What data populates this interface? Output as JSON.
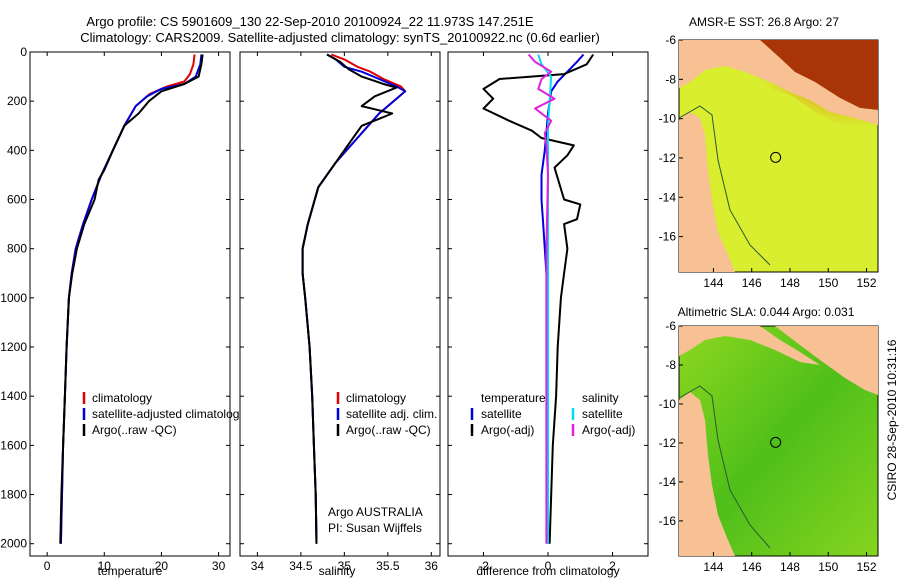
{
  "header": {
    "line1": "Argo profile: CS 5901609_130 22-Sep-2010 20100924_22 11.973S 147.251E",
    "line2": "Climatology: CARS2009. Satellite-adjusted climatology: synTS_20100922.nc (0.6d earlier)"
  },
  "side_stamp": "CSIRO 28-Sep-2010 10:31:16",
  "chart_data": [
    {
      "id": "temperature",
      "type": "line",
      "xlabel": "temperature",
      "ylabel": "",
      "xlim": [
        -3,
        32
      ],
      "ylim": [
        2050,
        0
      ],
      "xticks": [
        0,
        10,
        20,
        30
      ],
      "yticks": [
        0,
        200,
        400,
        600,
        800,
        1000,
        1200,
        1400,
        1600,
        1800,
        2000
      ],
      "legend": {
        "position": "lower-right",
        "entries": [
          {
            "label": "climatology",
            "color": "#e00000"
          },
          {
            "label": "satellite-adjusted climatology",
            "color": "#0000dd"
          },
          {
            "label": "Argo(..raw -QC)",
            "color": "#000000"
          }
        ]
      },
      "series": [
        {
          "key": "climatology",
          "color": "#e00000",
          "points": [
            [
              25.8,
              10
            ],
            [
              25.6,
              50
            ],
            [
              25,
              90
            ],
            [
              24,
              120
            ],
            [
              21,
              140
            ],
            [
              18,
              170
            ],
            [
              15.5,
              220
            ],
            [
              13.5,
              300
            ],
            [
              11.5,
              400
            ],
            [
              9.5,
              500
            ],
            [
              7.8,
              600
            ],
            [
              6.3,
              700
            ],
            [
              5,
              800
            ],
            [
              4.3,
              900
            ],
            [
              3.8,
              1000
            ],
            [
              3.4,
              1200
            ],
            [
              3.1,
              1400
            ],
            [
              2.8,
              1600
            ],
            [
              2.6,
              1800
            ],
            [
              2.4,
              2000
            ]
          ]
        },
        {
          "key": "satellite",
          "color": "#0000dd",
          "points": [
            [
              27,
              10
            ],
            [
              26.8,
              50
            ],
            [
              26,
              100
            ],
            [
              24,
              130
            ],
            [
              20,
              150
            ],
            [
              17.5,
              180
            ],
            [
              15.5,
              220
            ],
            [
              13.5,
              300
            ],
            [
              11.5,
              400
            ],
            [
              9.5,
              500
            ],
            [
              7.8,
              600
            ],
            [
              6.3,
              700
            ],
            [
              5,
              800
            ],
            [
              4.3,
              900
            ],
            [
              3.8,
              1000
            ],
            [
              3.4,
              1200
            ],
            [
              3.1,
              1400
            ],
            [
              2.8,
              1600
            ],
            [
              2.6,
              1800
            ],
            [
              2.4,
              2000
            ]
          ]
        },
        {
          "key": "argo",
          "color": "#000000",
          "points": [
            [
              27.2,
              10
            ],
            [
              27,
              50
            ],
            [
              26.5,
              100
            ],
            [
              24,
              130
            ],
            [
              20,
              160
            ],
            [
              17.8,
              200
            ],
            [
              16,
              250
            ],
            [
              13.5,
              300
            ],
            [
              12.5,
              350
            ],
            [
              11.5,
              400
            ],
            [
              10,
              480
            ],
            [
              9,
              520
            ],
            [
              8.3,
              600
            ],
            [
              6.5,
              700
            ],
            [
              5.2,
              800
            ],
            [
              4.4,
              900
            ],
            [
              3.8,
              1000
            ],
            [
              3.4,
              1200
            ],
            [
              3.1,
              1400
            ],
            [
              2.8,
              1600
            ],
            [
              2.5,
              1800
            ],
            [
              2.3,
              2000
            ]
          ]
        }
      ]
    },
    {
      "id": "salinity",
      "type": "line",
      "xlabel": "salinity",
      "ylabel": "",
      "xlim": [
        33.8,
        36.1
      ],
      "ylim": [
        2050,
        0
      ],
      "xticks": [
        34,
        34.5,
        35,
        35.5,
        36
      ],
      "yticks": [
        0,
        200,
        400,
        600,
        800,
        1000,
        1200,
        1400,
        1600,
        1800,
        2000
      ],
      "legend": {
        "position": "lower-right",
        "entries": [
          {
            "label": "climatology",
            "color": "#e00000"
          },
          {
            "label": "satellite adj. clim.",
            "color": "#0000dd"
          },
          {
            "label": "Argo(..raw -QC)",
            "color": "#000000"
          }
        ]
      },
      "annotations": [
        "Argo AUSTRALIA",
        "PI: Susan Wijffels"
      ],
      "series": [
        {
          "key": "climatology",
          "color": "#e00000",
          "points": [
            [
              34.85,
              10
            ],
            [
              35.0,
              30
            ],
            [
              35.15,
              60
            ],
            [
              35.3,
              80
            ],
            [
              35.45,
              110
            ],
            [
              35.65,
              140
            ],
            [
              35.7,
              160
            ],
            [
              35.6,
              190
            ],
            [
              35.4,
              250
            ],
            [
              35.15,
              350
            ],
            [
              34.9,
              450
            ],
            [
              34.7,
              550
            ],
            [
              34.58,
              700
            ],
            [
              34.52,
              800
            ],
            [
              34.52,
              900
            ],
            [
              34.55,
              1000
            ],
            [
              34.6,
              1200
            ],
            [
              34.63,
              1400
            ],
            [
              34.65,
              1600
            ],
            [
              34.67,
              1800
            ],
            [
              34.68,
              2000
            ]
          ]
        },
        {
          "key": "satellite",
          "color": "#0000dd",
          "points": [
            [
              34.8,
              10
            ],
            [
              34.9,
              30
            ],
            [
              35.0,
              60
            ],
            [
              35.2,
              80
            ],
            [
              35.4,
              110
            ],
            [
              35.6,
              140
            ],
            [
              35.7,
              160
            ],
            [
              35.6,
              190
            ],
            [
              35.4,
              250
            ],
            [
              35.15,
              350
            ],
            [
              34.9,
              450
            ],
            [
              34.7,
              550
            ],
            [
              34.58,
              700
            ],
            [
              34.52,
              800
            ],
            [
              34.52,
              900
            ],
            [
              34.55,
              1000
            ],
            [
              34.6,
              1200
            ],
            [
              34.63,
              1400
            ],
            [
              34.65,
              1600
            ],
            [
              34.67,
              1800
            ],
            [
              34.68,
              2000
            ]
          ]
        },
        {
          "key": "argo",
          "color": "#000000",
          "points": [
            [
              34.8,
              10
            ],
            [
              34.95,
              40
            ],
            [
              35.05,
              70
            ],
            [
              35.2,
              100
            ],
            [
              35.45,
              130
            ],
            [
              35.6,
              145
            ],
            [
              35.35,
              180
            ],
            [
              35.2,
              220
            ],
            [
              35.55,
              250
            ],
            [
              35.2,
              300
            ],
            [
              35.1,
              350
            ],
            [
              34.9,
              450
            ],
            [
              34.7,
              550
            ],
            [
              34.58,
              700
            ],
            [
              34.52,
              800
            ],
            [
              34.52,
              900
            ],
            [
              34.55,
              1000
            ],
            [
              34.6,
              1200
            ],
            [
              34.63,
              1400
            ],
            [
              34.65,
              1600
            ],
            [
              34.67,
              1800
            ],
            [
              34.68,
              2000
            ]
          ]
        }
      ]
    },
    {
      "id": "difference",
      "type": "line",
      "xlabel": "difference from climatology",
      "ylabel": "",
      "xlim": [
        -3.1,
        3.1
      ],
      "ylim": [
        2050,
        0
      ],
      "xticks": [
        -2,
        0,
        2
      ],
      "yticks": [
        0,
        200,
        400,
        600,
        800,
        1000,
        1200,
        1400,
        1600,
        1800,
        2000
      ],
      "legend": {
        "position": "lower-middle",
        "groups": [
          {
            "title": "temperature",
            "entries": [
              {
                "label": "satellite",
                "color": "#0000dd"
              },
              {
                "label": "Argo(-adj)",
                "color": "#000000"
              }
            ]
          },
          {
            "title": "salinity",
            "entries": [
              {
                "label": "satellite",
                "color": "#00ddee"
              },
              {
                "label": "Argo(-adj)",
                "color": "#e020e0"
              }
            ]
          }
        ]
      },
      "series": [
        {
          "key": "temp_satellite",
          "color": "#0000dd",
          "points": [
            [
              1.1,
              10
            ],
            [
              0.9,
              40
            ],
            [
              0.6,
              80
            ],
            [
              0.3,
              120
            ],
            [
              0.1,
              160
            ],
            [
              0.0,
              250
            ],
            [
              -0.1,
              400
            ],
            [
              -0.2,
              500
            ],
            [
              -0.2,
              600
            ],
            [
              -0.15,
              700
            ],
            [
              -0.1,
              800
            ],
            [
              -0.05,
              900
            ],
            [
              0,
              1000
            ],
            [
              0,
              1400
            ],
            [
              0,
              2000
            ]
          ]
        },
        {
          "key": "temp_argo",
          "color": "#000000",
          "points": [
            [
              1.4,
              10
            ],
            [
              1.2,
              50
            ],
            [
              0.5,
              90
            ],
            [
              -1.5,
              110
            ],
            [
              -2.0,
              150
            ],
            [
              -1.7,
              190
            ],
            [
              -2.0,
              230
            ],
            [
              -1.2,
              280
            ],
            [
              -0.5,
              320
            ],
            [
              -0.2,
              350
            ],
            [
              0.8,
              380
            ],
            [
              0.6,
              420
            ],
            [
              0.2,
              470
            ],
            [
              0.5,
              600
            ],
            [
              1.0,
              620
            ],
            [
              0.9,
              680
            ],
            [
              0.5,
              700
            ],
            [
              0.6,
              800
            ],
            [
              0.5,
              900
            ],
            [
              0.4,
              1000
            ],
            [
              0.3,
              1200
            ],
            [
              0.25,
              1400
            ],
            [
              0.15,
              1600
            ],
            [
              0.1,
              1800
            ],
            [
              0.05,
              2000
            ]
          ]
        },
        {
          "key": "sal_satellite",
          "color": "#00ddee",
          "points": [
            [
              -0.3,
              10
            ],
            [
              -0.2,
              50
            ],
            [
              0.1,
              100
            ],
            [
              0.05,
              200
            ],
            [
              0,
              300
            ],
            [
              0,
              500
            ],
            [
              0,
              1000
            ],
            [
              0,
              2000
            ]
          ]
        },
        {
          "key": "sal_argo",
          "color": "#e020e0",
          "points": [
            [
              -0.6,
              10
            ],
            [
              -0.4,
              40
            ],
            [
              0.1,
              80
            ],
            [
              -0.2,
              110
            ],
            [
              -0.3,
              150
            ],
            [
              0.2,
              190
            ],
            [
              -0.4,
              230
            ],
            [
              0.1,
              280
            ],
            [
              -0.1,
              330
            ],
            [
              -0.05,
              380
            ],
            [
              0,
              500
            ],
            [
              -0.05,
              800
            ],
            [
              -0.05,
              1000
            ],
            [
              -0.05,
              1400
            ],
            [
              -0.05,
              2000
            ]
          ]
        }
      ]
    }
  ],
  "maps": [
    {
      "id": "sst-map",
      "title": "AMSR-E SST: 26.8 Argo: 27",
      "xlim": [
        142.2,
        152.6
      ],
      "ylim": [
        -17.8,
        -6
      ],
      "xticks": [
        144,
        146,
        148,
        150,
        152
      ],
      "yticks": [
        -6,
        -8,
        -10,
        -12,
        -14,
        -16
      ],
      "land_color": "#f7c193",
      "ocean_color": "#d8ee2e",
      "argo_lon": 147.25,
      "argo_lat": -11.97
    },
    {
      "id": "sla-map",
      "title": "Altimetric SLA: 0.044 Argo: 0.031",
      "xlim": [
        142.2,
        152.6
      ],
      "ylim": [
        -17.8,
        -6
      ],
      "xticks": [
        144,
        146,
        148,
        150,
        152
      ],
      "yticks": [
        -6,
        -8,
        -10,
        -12,
        -14,
        -16
      ],
      "land_color": "#f7c193",
      "ocean_color": "#66cc1a",
      "argo_lon": 147.25,
      "argo_lat": -11.97
    }
  ]
}
